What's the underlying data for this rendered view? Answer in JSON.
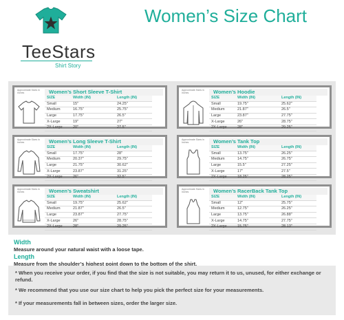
{
  "brand": {
    "name": "TeeStars",
    "tagline": "Shirt Story",
    "accent": "#1fae9a"
  },
  "page_title": "Women’s Size Chart",
  "measure_note": "Approximate Sizes in Inches",
  "columns": [
    "SIZE",
    "Width (IN)",
    "Length (IN)"
  ],
  "cards": [
    {
      "title": "Women’s Short Sleeve T-Shirt",
      "icon": "short-sleeve-tshirt-icon",
      "rows": [
        [
          "Small",
          "15\"",
          "24.25\""
        ],
        [
          "Medium",
          "16.75\"",
          "25.75\""
        ],
        [
          "Large",
          "17.75\"",
          "26.5\""
        ],
        [
          "X-Large",
          "19\"",
          "27\""
        ],
        [
          "2X-Large",
          "20\"",
          "27.5\""
        ]
      ]
    },
    {
      "title": "Women’s Hoodie",
      "icon": "hoodie-icon",
      "rows": [
        [
          "Small",
          "19.75\"",
          "25.62\""
        ],
        [
          "Medium",
          "21.87\"",
          "26.5\""
        ],
        [
          "Large",
          "23.87\"",
          "27.75\""
        ],
        [
          "X-Large",
          "26\"",
          "28.75\""
        ],
        [
          "2X-Large",
          "28\"",
          "29.25\""
        ]
      ]
    },
    {
      "title": "Women’s Long Sleeve T-Shirt",
      "icon": "long-sleeve-tshirt-icon",
      "rows": [
        [
          "Small",
          "17.75\"",
          "28\""
        ],
        [
          "Medium",
          "20.37\"",
          "29.75\""
        ],
        [
          "Large",
          "21.75\"",
          "30.62\""
        ],
        [
          "X-Large",
          "23.87\"",
          "31.25\""
        ],
        [
          "2X-Large",
          "26\"",
          "32.5\""
        ]
      ]
    },
    {
      "title": "Women’s Tank Top",
      "icon": "tank-top-icon",
      "rows": [
        [
          "Small",
          "13.75\"",
          "26.25\""
        ],
        [
          "Medium",
          "14.75\"",
          "26.75\""
        ],
        [
          "Large",
          "15.5\"",
          "27.25\""
        ],
        [
          "X-Large",
          "17\"",
          "27.5\""
        ],
        [
          "2X-Large",
          "18.25\"",
          "28.25\""
        ]
      ]
    },
    {
      "title": "Women’s Sweatshirt",
      "icon": "sweatshirt-icon",
      "rows": [
        [
          "Small",
          "19.75\"",
          "25.62\""
        ],
        [
          "Medium",
          "21.87\"",
          "26.5\""
        ],
        [
          "Large",
          "23.87\"",
          "27.75\""
        ],
        [
          "X-Large",
          "26\"",
          "28.75\""
        ],
        [
          "2X-Large",
          "28\"",
          "29.25\""
        ]
      ]
    },
    {
      "title": "Women’s RacerBack Tank Top",
      "icon": "racerback-tank-icon",
      "rows": [
        [
          "Small",
          "12\"",
          "25.75\""
        ],
        [
          "Medium",
          "12.75\"",
          "26.25\""
        ],
        [
          "Large",
          "13.75\"",
          "26.88\""
        ],
        [
          "X-Large",
          "14.75\"",
          "27.75\""
        ],
        [
          "2X-Large",
          "15.75\"",
          "28.13\""
        ]
      ]
    }
  ],
  "instructions": {
    "width_heading": "Width",
    "width_text": "Measure around your natural waist with a loose tape.",
    "length_heading": "Length",
    "length_text": "Measure from the shoulder’s highest point down to the bottom of the shirt."
  },
  "notes": [
    "* When you receive your order, if you find that the size is not suitable, you may return it to us, unused, for either exchange or refund.",
    "* We recommend that you use our size chart to help you pick the perfect size for your measurements.",
    "* If your measurements fall in between sizes, order the larger size."
  ]
}
